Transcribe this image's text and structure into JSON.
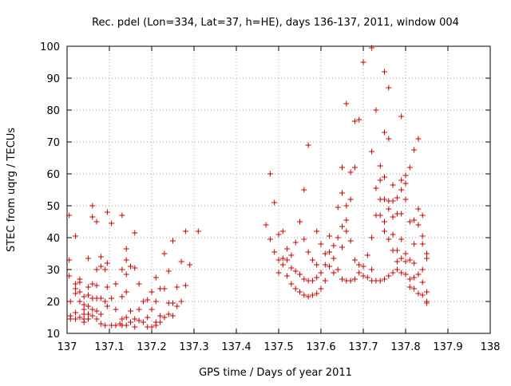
{
  "chart_data": {
    "type": "scatter",
    "title": "Rec. pdel (Lon=334, Lat=37, h=HE), days 136-137, 2011, window 004",
    "xlabel": "GPS time / Days of year 2011",
    "ylabel": "STEC from uqrg / TECUs",
    "xlim": [
      137,
      138
    ],
    "ylim": [
      10,
      100
    ],
    "x_ticks": [
      137,
      137.1,
      137.2,
      137.3,
      137.4,
      137.5,
      137.6,
      137.7,
      137.8,
      137.9,
      138
    ],
    "x_tick_labels": [
      "137",
      "137.1",
      "137.2",
      "137.3",
      "137.4",
      "137.5",
      "137.6",
      "137.7",
      "137.8",
      "137.9",
      "138"
    ],
    "y_ticks": [
      10,
      20,
      30,
      40,
      50,
      60,
      70,
      80,
      90,
      100
    ],
    "y_tick_labels": [
      "10",
      "20",
      "30",
      "40",
      "50",
      "60",
      "70",
      "80",
      "90",
      "100"
    ],
    "grid": true,
    "marker": "+",
    "marker_color": "#cc0000",
    "series": [
      {
        "points": [
          [
            137.005,
            47.0
          ],
          [
            137.005,
            33.0
          ],
          [
            137.005,
            28.0
          ],
          [
            137.008,
            20.0
          ],
          [
            137.008,
            15.5
          ],
          [
            137.008,
            14.5
          ],
          [
            137.02,
            40.5
          ],
          [
            137.02,
            25.5
          ],
          [
            137.02,
            24.0
          ],
          [
            137.02,
            22.5
          ],
          [
            137.02,
            16.5
          ],
          [
            137.02,
            14.5
          ],
          [
            137.03,
            27.0
          ],
          [
            137.03,
            26.0
          ],
          [
            137.03,
            23.0
          ],
          [
            137.03,
            20.0
          ],
          [
            137.03,
            15.0
          ],
          [
            137.04,
            21.5
          ],
          [
            137.04,
            19.0
          ],
          [
            137.04,
            17.5
          ],
          [
            137.04,
            16.0
          ],
          [
            137.04,
            14.5
          ],
          [
            137.04,
            13.5
          ],
          [
            137.05,
            33.5
          ],
          [
            137.05,
            24.5
          ],
          [
            137.05,
            22.0
          ],
          [
            137.05,
            18.5
          ],
          [
            137.05,
            16.0
          ],
          [
            137.05,
            14.5
          ],
          [
            137.06,
            50.0
          ],
          [
            137.06,
            46.5
          ],
          [
            137.06,
            25.5
          ],
          [
            137.06,
            21.0
          ],
          [
            137.06,
            17.5
          ],
          [
            137.06,
            15.5
          ],
          [
            137.07,
            45.0
          ],
          [
            137.07,
            30.0
          ],
          [
            137.07,
            25.0
          ],
          [
            137.07,
            21.0
          ],
          [
            137.07,
            17.0
          ],
          [
            137.07,
            14.5
          ],
          [
            137.08,
            34.0
          ],
          [
            137.08,
            31.0
          ],
          [
            137.08,
            21.0
          ],
          [
            137.08,
            16.0
          ],
          [
            137.08,
            13.0
          ],
          [
            137.09,
            30.0
          ],
          [
            137.09,
            20.0
          ],
          [
            137.09,
            12.5
          ],
          [
            137.095,
            48.0
          ],
          [
            137.095,
            32.0
          ],
          [
            137.095,
            24.5
          ],
          [
            137.095,
            18.5
          ],
          [
            137.105,
            44.5
          ],
          [
            137.105,
            21.0
          ],
          [
            137.105,
            12.5
          ],
          [
            137.115,
            25.5
          ],
          [
            137.115,
            17.5
          ],
          [
            137.115,
            12.5
          ],
          [
            137.125,
            13.0
          ],
          [
            137.13,
            47.0
          ],
          [
            137.13,
            30.0
          ],
          [
            137.13,
            21.5
          ],
          [
            137.13,
            14.5
          ],
          [
            137.13,
            12.5
          ],
          [
            137.14,
            36.5
          ],
          [
            137.14,
            33.0
          ],
          [
            137.14,
            28.5
          ],
          [
            137.14,
            23.0
          ],
          [
            137.14,
            15.0
          ],
          [
            137.14,
            12.5
          ],
          [
            137.15,
            31.0
          ],
          [
            137.15,
            17.0
          ],
          [
            137.15,
            13.5
          ],
          [
            137.16,
            41.5
          ],
          [
            137.16,
            30.5
          ],
          [
            137.16,
            14.5
          ],
          [
            137.16,
            12.0
          ],
          [
            137.17,
            25.5
          ],
          [
            137.17,
            17.5
          ],
          [
            137.17,
            14.0
          ],
          [
            137.18,
            20.0
          ],
          [
            137.18,
            13.5
          ],
          [
            137.19,
            20.5
          ],
          [
            137.19,
            15.0
          ],
          [
            137.19,
            12.0
          ],
          [
            137.2,
            23.0
          ],
          [
            137.2,
            17.5
          ],
          [
            137.2,
            12.0
          ],
          [
            137.21,
            27.5
          ],
          [
            137.21,
            20.0
          ],
          [
            137.21,
            13.5
          ],
          [
            137.21,
            12.5
          ],
          [
            137.22,
            24.0
          ],
          [
            137.22,
            15.5
          ],
          [
            137.22,
            13.5
          ],
          [
            137.23,
            35.0
          ],
          [
            137.23,
            24.0
          ],
          [
            137.23,
            15.0
          ],
          [
            137.24,
            29.5
          ],
          [
            137.24,
            19.5
          ],
          [
            137.24,
            16.0
          ],
          [
            137.25,
            39.0
          ],
          [
            137.25,
            19.5
          ],
          [
            137.25,
            15.5
          ],
          [
            137.26,
            24.5
          ],
          [
            137.26,
            18.5
          ],
          [
            137.27,
            32.5
          ],
          [
            137.27,
            20.0
          ],
          [
            137.28,
            42.0
          ],
          [
            137.28,
            25.0
          ],
          [
            137.29,
            31.5
          ],
          [
            137.31,
            42.0
          ],
          [
            137.47,
            44.0
          ],
          [
            137.48,
            60.0
          ],
          [
            137.48,
            39.5
          ],
          [
            137.49,
            51.0
          ],
          [
            137.49,
            35.5
          ],
          [
            137.5,
            41.0
          ],
          [
            137.5,
            33.0
          ],
          [
            137.5,
            29.0
          ],
          [
            137.51,
            42.0
          ],
          [
            137.51,
            33.5
          ],
          [
            137.51,
            31.5
          ],
          [
            137.52,
            36.5
          ],
          [
            137.52,
            33.0
          ],
          [
            137.52,
            28.0
          ],
          [
            137.53,
            34.5
          ],
          [
            137.53,
            30.5
          ],
          [
            137.53,
            25.5
          ],
          [
            137.54,
            38.5
          ],
          [
            137.54,
            29.5
          ],
          [
            137.54,
            24.0
          ],
          [
            137.55,
            45.0
          ],
          [
            137.55,
            28.5
          ],
          [
            137.55,
            23.0
          ],
          [
            137.56,
            55.0
          ],
          [
            137.56,
            39.5
          ],
          [
            137.56,
            27.0
          ],
          [
            137.56,
            22.0
          ],
          [
            137.57,
            69.0
          ],
          [
            137.57,
            35.5
          ],
          [
            137.57,
            26.5
          ],
          [
            137.57,
            21.5
          ],
          [
            137.58,
            33.0
          ],
          [
            137.58,
            26.5
          ],
          [
            137.58,
            22.0
          ],
          [
            137.59,
            42.0
          ],
          [
            137.59,
            31.5
          ],
          [
            137.59,
            27.5
          ],
          [
            137.59,
            22.5
          ],
          [
            137.6,
            38.0
          ],
          [
            137.6,
            29.0
          ],
          [
            137.6,
            24.0
          ],
          [
            137.61,
            35.0
          ],
          [
            137.61,
            31.5
          ],
          [
            137.61,
            26.5
          ],
          [
            137.62,
            40.5
          ],
          [
            137.62,
            35.5
          ],
          [
            137.62,
            31.0
          ],
          [
            137.63,
            37.5
          ],
          [
            137.63,
            33.5
          ],
          [
            137.63,
            29.0
          ],
          [
            137.64,
            49.5
          ],
          [
            137.64,
            40.0
          ],
          [
            137.64,
            30.0
          ],
          [
            137.65,
            62.0
          ],
          [
            137.65,
            54.0
          ],
          [
            137.65,
            43.5
          ],
          [
            137.65,
            37.0
          ],
          [
            137.65,
            27.0
          ],
          [
            137.66,
            82.0
          ],
          [
            137.66,
            50.0
          ],
          [
            137.66,
            45.5
          ],
          [
            137.66,
            42.0
          ],
          [
            137.66,
            26.5
          ],
          [
            137.67,
            60.5
          ],
          [
            137.67,
            52.0
          ],
          [
            137.67,
            39.0
          ],
          [
            137.67,
            26.5
          ],
          [
            137.68,
            76.5
          ],
          [
            137.68,
            62.0
          ],
          [
            137.68,
            33.0
          ],
          [
            137.68,
            27.0
          ],
          [
            137.69,
            77.0
          ],
          [
            137.69,
            31.5
          ],
          [
            137.69,
            29.0
          ],
          [
            137.7,
            95.0
          ],
          [
            137.7,
            31.0
          ],
          [
            137.7,
            28.0
          ],
          [
            137.71,
            34.5
          ],
          [
            137.71,
            27.5
          ],
          [
            137.72,
            99.5
          ],
          [
            137.72,
            67.0
          ],
          [
            137.72,
            40.0
          ],
          [
            137.72,
            30.0
          ],
          [
            137.72,
            26.5
          ],
          [
            137.73,
            80.0
          ],
          [
            137.73,
            55.5
          ],
          [
            137.73,
            47.0
          ],
          [
            137.73,
            26.5
          ],
          [
            137.74,
            62.5
          ],
          [
            137.74,
            58.0
          ],
          [
            137.74,
            52.0
          ],
          [
            137.74,
            47.0
          ],
          [
            137.74,
            26.5
          ],
          [
            137.75,
            92.0
          ],
          [
            137.75,
            73.0
          ],
          [
            137.75,
            59.0
          ],
          [
            137.75,
            52.0
          ],
          [
            137.75,
            45.0
          ],
          [
            137.75,
            42.0
          ],
          [
            137.75,
            27.0
          ],
          [
            137.76,
            87.0
          ],
          [
            137.76,
            71.0
          ],
          [
            137.76,
            51.5
          ],
          [
            137.76,
            49.0
          ],
          [
            137.76,
            39.5
          ],
          [
            137.76,
            28.0
          ],
          [
            137.77,
            56.5
          ],
          [
            137.77,
            51.5
          ],
          [
            137.77,
            46.5
          ],
          [
            137.77,
            41.0
          ],
          [
            137.77,
            36.0
          ],
          [
            137.77,
            29.0
          ],
          [
            137.78,
            52.5
          ],
          [
            137.78,
            47.5
          ],
          [
            137.78,
            36.0
          ],
          [
            137.78,
            32.5
          ],
          [
            137.78,
            30.0
          ],
          [
            137.79,
            78.0
          ],
          [
            137.79,
            58.0
          ],
          [
            137.79,
            55.0
          ],
          [
            137.79,
            47.5
          ],
          [
            137.79,
            39.5
          ],
          [
            137.79,
            33.5
          ],
          [
            137.79,
            29.0
          ],
          [
            137.8,
            59.5
          ],
          [
            137.8,
            57.0
          ],
          [
            137.8,
            52.0
          ],
          [
            137.8,
            35.0
          ],
          [
            137.8,
            32.5
          ],
          [
            137.8,
            28.5
          ],
          [
            137.81,
            62.0
          ],
          [
            137.81,
            45.0
          ],
          [
            137.81,
            33.0
          ],
          [
            137.81,
            27.0
          ],
          [
            137.81,
            24.5
          ],
          [
            137.82,
            67.5
          ],
          [
            137.82,
            45.5
          ],
          [
            137.82,
            38.0
          ],
          [
            137.82,
            32.0
          ],
          [
            137.82,
            27.5
          ],
          [
            137.82,
            24.0
          ],
          [
            137.83,
            71.0
          ],
          [
            137.83,
            49.0
          ],
          [
            137.83,
            44.0
          ],
          [
            137.83,
            28.5
          ],
          [
            137.83,
            22.5
          ],
          [
            137.84,
            47.0
          ],
          [
            137.84,
            40.5
          ],
          [
            137.84,
            38.0
          ],
          [
            137.84,
            30.0
          ],
          [
            137.84,
            26.0
          ],
          [
            137.84,
            22.0
          ],
          [
            137.85,
            35.0
          ],
          [
            137.85,
            33.5
          ],
          [
            137.85,
            23.0
          ],
          [
            137.85,
            20.0
          ],
          [
            137.85,
            19.5
          ]
        ]
      }
    ]
  }
}
